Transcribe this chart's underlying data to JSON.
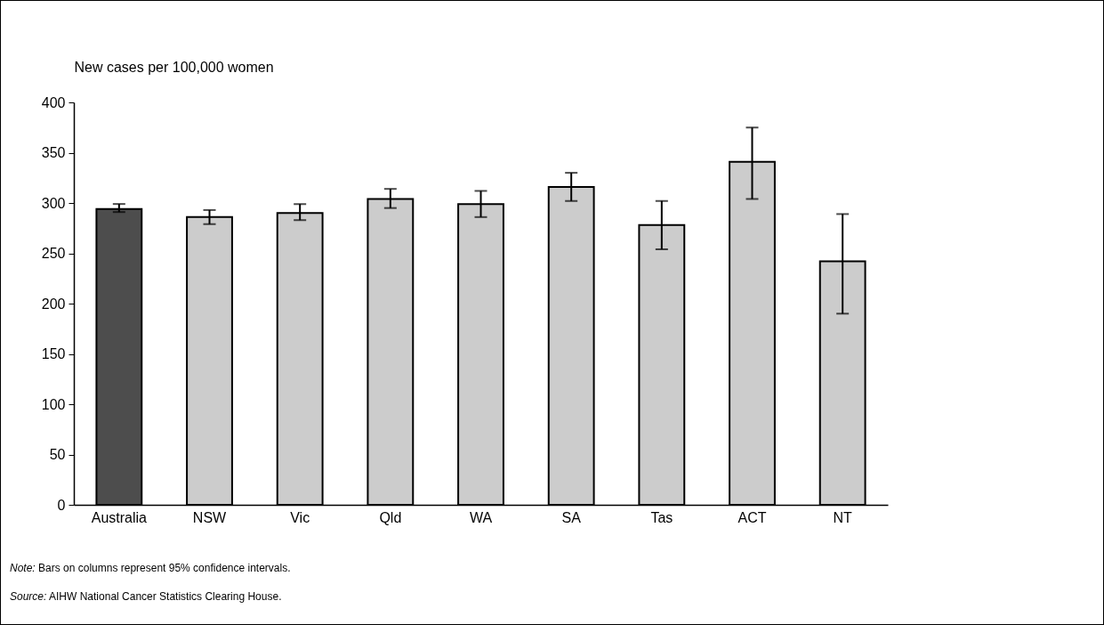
{
  "chart_data": {
    "type": "bar",
    "ylabel": "New cases per 100,000 women",
    "categories": [
      "Australia",
      "NSW",
      "Vic",
      "Qld",
      "WA",
      "SA",
      "Tas",
      "ACT",
      "NT"
    ],
    "values": [
      294,
      286,
      290,
      304,
      299,
      316,
      278,
      341,
      242
    ],
    "colors": [
      "#4d4d4d",
      "#cccccc",
      "#cccccc",
      "#cccccc",
      "#cccccc",
      "#cccccc",
      "#cccccc",
      "#cccccc",
      "#cccccc"
    ],
    "errors": [
      [
        291,
        299
      ],
      [
        279,
        293
      ],
      [
        283,
        299
      ],
      [
        295,
        314
      ],
      [
        286,
        312
      ],
      [
        302,
        330
      ],
      [
        254,
        302
      ],
      [
        304,
        375
      ],
      [
        190,
        289
      ]
    ],
    "ylim": [
      0,
      400
    ],
    "yticks": [
      0,
      50,
      100,
      150,
      200,
      250,
      300,
      350,
      400
    ],
    "grid": false,
    "legend": false,
    "annotations": [
      "Note: Bars on columns represent 95% confidence intervals.",
      "Source: AIHW National Cancer Statistics Clearing House."
    ]
  }
}
